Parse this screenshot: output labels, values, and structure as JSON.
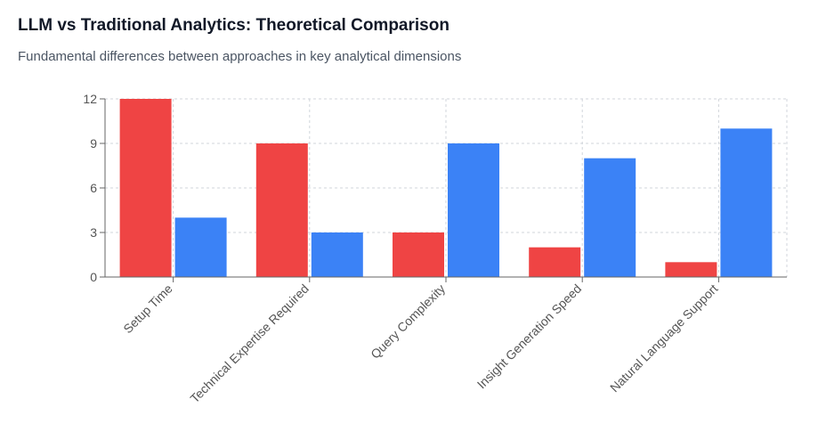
{
  "header": {
    "title": "LLM vs Traditional Analytics: Theoretical Comparison",
    "subtitle": "Fundamental differences between approaches in key analytical dimensions"
  },
  "chart_data": {
    "type": "bar",
    "categories": [
      "Setup Time",
      "Technical Expertise Required",
      "Query Complexity",
      "Insight Generation Speed",
      "Natural Language Support"
    ],
    "series": [
      {
        "values": [
          12,
          9,
          3,
          2,
          1
        ],
        "color": "#ef4444"
      },
      {
        "values": [
          4,
          3,
          9,
          8,
          10
        ],
        "color": "#3b82f6"
      }
    ],
    "ylim": [
      0,
      12
    ],
    "yticks": [
      0,
      3,
      6,
      9,
      12
    ],
    "grid": true
  }
}
